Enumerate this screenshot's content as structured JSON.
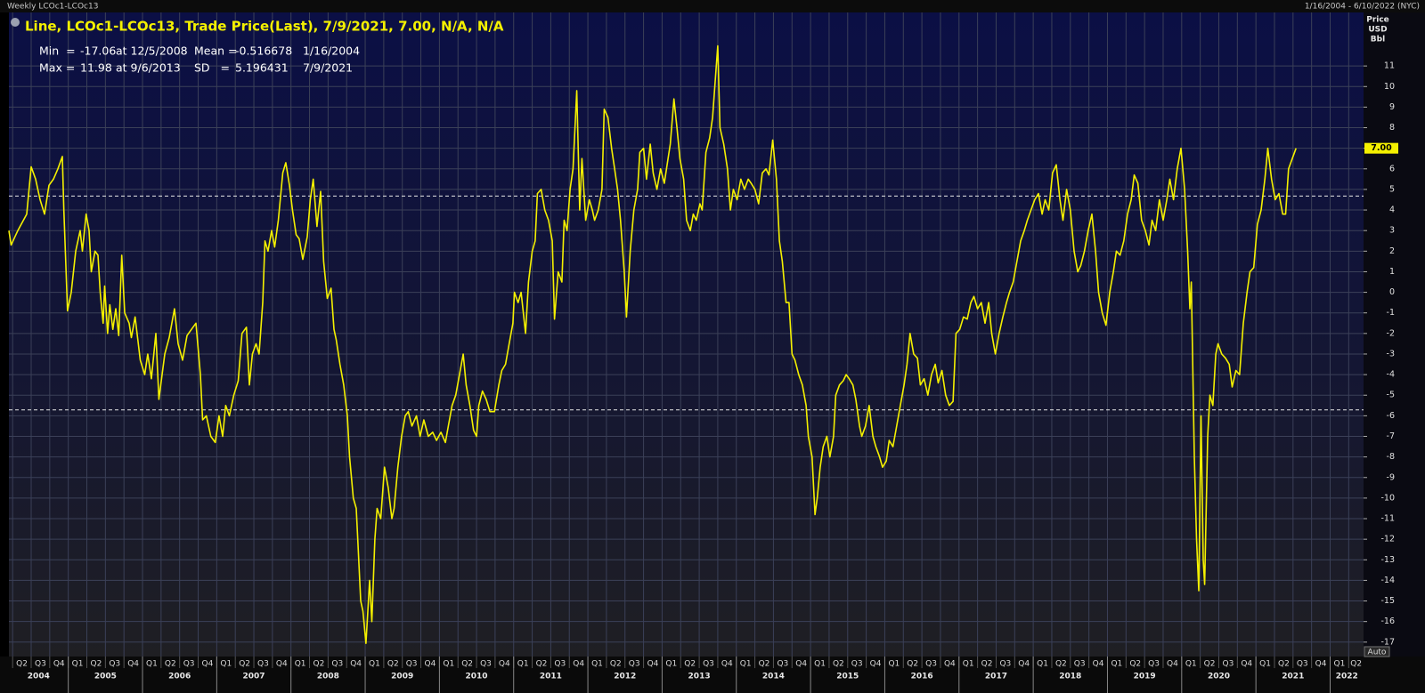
{
  "chart_data": {
    "type": "line",
    "window_title": "Weekly LCOc1-LCOc13",
    "date_range": "1/16/2004 - 6/10/2022 (NYC)",
    "y_axis_label": [
      "Price",
      "USD",
      "Bbl"
    ],
    "stats": [
      {
        "name": "Min  =",
        "value": -17.06,
        "at": "at 12/5/2008"
      },
      {
        "name": "Max =",
        "value": 11.98,
        "at": "at 9/6/2013"
      },
      {
        "name": "Mean =",
        "value": -0.516678,
        "at": "1/16/2004"
      },
      {
        "name": "SD   =",
        "value": 5.196431,
        "at": "7/9/2021"
      }
    ],
    "price_marker": {
      "value": 7,
      "label": "7.00"
    },
    "auto_button": "Auto",
    "xlim": [
      2004.2,
      2022.45
    ],
    "ylim": [
      -17.7,
      13.6
    ],
    "yticks": [
      -17,
      -16,
      -15,
      -14,
      -13,
      -12,
      -11,
      -10,
      -9,
      -8,
      -7,
      -6,
      -5,
      -4,
      -3,
      -2,
      -1,
      0,
      1,
      2,
      3,
      4,
      5,
      6,
      7,
      8,
      9,
      10,
      11
    ],
    "xticks": [
      {
        "value": 2004.25,
        "label": "Q2"
      },
      {
        "value": 2004.5,
        "label": "Q3"
      },
      {
        "value": 2004.75,
        "label": "Q4"
      },
      {
        "value": 2005,
        "label": "Q1"
      },
      {
        "value": 2005.25,
        "label": "Q2"
      },
      {
        "value": 2005.5,
        "label": "Q3"
      },
      {
        "value": 2005.75,
        "label": "Q4"
      },
      {
        "value": 2006,
        "label": "Q1"
      },
      {
        "value": 2006.25,
        "label": "Q2"
      },
      {
        "value": 2006.5,
        "label": "Q3"
      },
      {
        "value": 2006.75,
        "label": "Q4"
      },
      {
        "value": 2007,
        "label": "Q1"
      },
      {
        "value": 2007.25,
        "label": "Q2"
      },
      {
        "value": 2007.5,
        "label": "Q3"
      },
      {
        "value": 2007.75,
        "label": "Q4"
      },
      {
        "value": 2008,
        "label": "Q1"
      },
      {
        "value": 2008.25,
        "label": "Q2"
      },
      {
        "value": 2008.5,
        "label": "Q3"
      },
      {
        "value": 2008.75,
        "label": "Q4"
      },
      {
        "value": 2009,
        "label": "Q1"
      },
      {
        "value": 2009.25,
        "label": "Q2"
      },
      {
        "value": 2009.5,
        "label": "Q3"
      },
      {
        "value": 2009.75,
        "label": "Q4"
      },
      {
        "value": 2010,
        "label": "Q1"
      },
      {
        "value": 2010.25,
        "label": "Q2"
      },
      {
        "value": 2010.5,
        "label": "Q3"
      },
      {
        "value": 2010.75,
        "label": "Q4"
      },
      {
        "value": 2011,
        "label": "Q1"
      },
      {
        "value": 2011.25,
        "label": "Q2"
      },
      {
        "value": 2011.5,
        "label": "Q3"
      },
      {
        "value": 2011.75,
        "label": "Q4"
      },
      {
        "value": 2012,
        "label": "Q1"
      },
      {
        "value": 2012.25,
        "label": "Q2"
      },
      {
        "value": 2012.5,
        "label": "Q3"
      },
      {
        "value": 2012.75,
        "label": "Q4"
      },
      {
        "value": 2013,
        "label": "Q1"
      },
      {
        "value": 2013.25,
        "label": "Q2"
      },
      {
        "value": 2013.5,
        "label": "Q3"
      },
      {
        "value": 2013.75,
        "label": "Q4"
      },
      {
        "value": 2014,
        "label": "Q1"
      },
      {
        "value": 2014.25,
        "label": "Q2"
      },
      {
        "value": 2014.5,
        "label": "Q3"
      },
      {
        "value": 2014.75,
        "label": "Q4"
      },
      {
        "value": 2015,
        "label": "Q1"
      },
      {
        "value": 2015.25,
        "label": "Q2"
      },
      {
        "value": 2015.5,
        "label": "Q3"
      },
      {
        "value": 2015.75,
        "label": "Q4"
      },
      {
        "value": 2016,
        "label": "Q1"
      },
      {
        "value": 2016.25,
        "label": "Q2"
      },
      {
        "value": 2016.5,
        "label": "Q3"
      },
      {
        "value": 2016.75,
        "label": "Q4"
      },
      {
        "value": 2017,
        "label": "Q1"
      },
      {
        "value": 2017.25,
        "label": "Q2"
      },
      {
        "value": 2017.5,
        "label": "Q3"
      },
      {
        "value": 2017.75,
        "label": "Q4"
      },
      {
        "value": 2018,
        "label": "Q1"
      },
      {
        "value": 2018.25,
        "label": "Q2"
      },
      {
        "value": 2018.5,
        "label": "Q3"
      },
      {
        "value": 2018.75,
        "label": "Q4"
      },
      {
        "value": 2019,
        "label": "Q1"
      },
      {
        "value": 2019.25,
        "label": "Q2"
      },
      {
        "value": 2019.5,
        "label": "Q3"
      },
      {
        "value": 2019.75,
        "label": "Q4"
      },
      {
        "value": 2020,
        "label": "Q1"
      },
      {
        "value": 2020.25,
        "label": "Q2"
      },
      {
        "value": 2020.5,
        "label": "Q3"
      },
      {
        "value": 2020.75,
        "label": "Q4"
      },
      {
        "value": 2021,
        "label": "Q1"
      },
      {
        "value": 2021.25,
        "label": "Q2"
      },
      {
        "value": 2021.5,
        "label": "Q3"
      },
      {
        "value": 2021.75,
        "label": "Q4"
      },
      {
        "value": 2022,
        "label": "Q1"
      },
      {
        "value": 2022.25,
        "label": "Q2"
      }
    ],
    "year_ticks": [
      2004,
      2005,
      2006,
      2007,
      2008,
      2009,
      2010,
      2011,
      2012,
      2013,
      2014,
      2015,
      2016,
      2017,
      2018,
      2019,
      2020,
      2021,
      2022
    ],
    "grid": true,
    "x": [
      2004.2,
      2004.23,
      2004.32,
      2004.44,
      2004.5,
      2004.56,
      2004.62,
      2004.68,
      2004.74,
      2004.8,
      2004.86,
      2004.92,
      2004.94,
      2004.99,
      2005.04,
      2005.1,
      2005.16,
      2005.19,
      2005.24,
      2005.28,
      2005.31,
      2005.36,
      2005.4,
      2005.43,
      2005.47,
      2005.49,
      2005.53,
      2005.56,
      2005.6,
      2005.64,
      2005.68,
      2005.72,
      2005.76,
      2005.82,
      2005.85,
      2005.9,
      2005.97,
      2006.03,
      2006.07,
      2006.12,
      2006.18,
      2006.22,
      2006.3,
      2006.36,
      2006.43,
      2006.48,
      2006.54,
      2006.6,
      2006.66,
      2006.72,
      2006.78,
      2006.81,
      2006.86,
      2006.92,
      2006.98,
      2007.03,
      2007.08,
      2007.12,
      2007.17,
      2007.23,
      2007.29,
      2007.34,
      2007.4,
      2007.44,
      2007.48,
      2007.53,
      2007.57,
      2007.62,
      2007.65,
      2007.69,
      2007.74,
      2007.78,
      2007.83,
      2007.89,
      2007.93,
      2007.98,
      2008.02,
      2008.07,
      2008.11,
      2008.16,
      2008.22,
      2008.26,
      2008.3,
      2008.35,
      2008.4,
      2008.44,
      2008.49,
      2008.54,
      2008.58,
      2008.61,
      2008.66,
      2008.71,
      2008.76,
      2008.79,
      2008.84,
      2008.88,
      2008.9,
      2008.94,
      2008.97,
      2009.01,
      2009.06,
      2009.09,
      2009.13,
      2009.16,
      2009.21,
      2009.26,
      2009.31,
      2009.36,
      2009.39,
      2009.44,
      2009.49,
      2009.54,
      2009.58,
      2009.63,
      2009.69,
      2009.74,
      2009.79,
      2009.85,
      2009.91,
      2009.96,
      2010.02,
      2010.08,
      2010.12,
      2010.17,
      2010.22,
      2010.27,
      2010.32,
      2010.36,
      2010.41,
      2010.46,
      2010.5,
      2010.53,
      2010.58,
      2010.63,
      2010.68,
      2010.74,
      2010.8,
      2010.84,
      2010.89,
      2010.94,
      2010.99,
      2011.01,
      2011.06,
      2011.1,
      2011.16,
      2011.2,
      2011.25,
      2011.29,
      2011.32,
      2011.37,
      2011.42,
      2011.47,
      2011.52,
      2011.55,
      2011.6,
      2011.65,
      2011.68,
      2011.72,
      2011.76,
      2011.8,
      2011.85,
      2011.89,
      2011.92,
      2011.97,
      2012.02,
      2012.06,
      2012.09,
      2012.14,
      2012.19,
      2012.22,
      2012.27,
      2012.32,
      2012.36,
      2012.4,
      2012.44,
      2012.49,
      2012.52,
      2012.57,
      2012.62,
      2012.67,
      2012.7,
      2012.75,
      2012.79,
      2012.84,
      2012.88,
      2012.93,
      2012.98,
      2013.03,
      2013.08,
      2013.11,
      2013.16,
      2013.2,
      2013.24,
      2013.29,
      2013.33,
      2013.38,
      2013.42,
      2013.46,
      2013.51,
      2013.54,
      2013.59,
      2013.64,
      2013.68,
      2013.71,
      2013.75,
      2013.78,
      2013.83,
      2013.88,
      2013.92,
      2013.96,
      2014.01,
      2014.06,
      2014.11,
      2014.16,
      2014.2,
      2014.25,
      2014.3,
      2014.35,
      2014.4,
      2014.44,
      2014.49,
      2014.54,
      2014.58,
      2014.62,
      2014.67,
      2014.71,
      2014.75,
      2014.79,
      2014.84,
      2014.89,
      2014.94,
      2014.97,
      2015.02,
      2015.06,
      2015.09,
      2015.13,
      2015.17,
      2015.22,
      2015.26,
      2015.31,
      2015.34,
      2015.39,
      2015.44,
      2015.48,
      2015.52,
      2015.57,
      2015.61,
      2015.66,
      2015.69,
      2015.74,
      2015.79,
      2015.84,
      2015.88,
      2015.93,
      2015.97,
      2016.02,
      2016.06,
      2016.11,
      2016.16,
      2016.21,
      2016.26,
      2016.3,
      2016.34,
      2016.39,
      2016.44,
      2016.48,
      2016.53,
      2016.58,
      2016.63,
      2016.68,
      2016.72,
      2016.77,
      2016.82,
      2016.87,
      2016.92,
      2016.96,
      2017.01,
      2017.06,
      2017.11,
      2017.16,
      2017.2,
      2017.25,
      2017.3,
      2017.35,
      2017.4,
      2017.44,
      2017.49,
      2017.54,
      2017.59,
      2017.64,
      2017.68,
      2017.73,
      2017.78,
      2017.83,
      2017.88,
      2017.92,
      2017.97,
      2018.02,
      2018.07,
      2018.12,
      2018.16,
      2018.21,
      2018.26,
      2018.31,
      2018.36,
      2018.4,
      2018.45,
      2018.5,
      2018.55,
      2018.6,
      2018.64,
      2018.69,
      2018.74,
      2018.79,
      2018.84,
      2018.88,
      2018.93,
      2018.98,
      2019.03,
      2019.08,
      2019.12,
      2019.17,
      2019.22,
      2019.27,
      2019.32,
      2019.36,
      2019.41,
      2019.46,
      2019.51,
      2019.56,
      2019.6,
      2019.65,
      2019.7,
      2019.75,
      2019.8,
      2019.84,
      2019.89,
      2019.94,
      2019.99,
      2020.04,
      2020.08,
      2020.11,
      2020.13,
      2020.17,
      2020.2,
      2020.23,
      2020.26,
      2020.29,
      2020.31,
      2020.35,
      2020.38,
      2020.42,
      2020.46,
      2020.49,
      2020.54,
      2020.59,
      2020.64,
      2020.68,
      2020.73,
      2020.78,
      2020.83,
      2020.88,
      2020.92,
      2020.97,
      2021.02,
      2021.07,
      2021.12,
      2021.16,
      2021.21,
      2021.26,
      2021.31,
      2021.36,
      2021.4,
      2021.44,
      2021.49,
      2021.54
    ],
    "series": [
      {
        "name": "Line, LCOc1-LCOc13, Trade Price(Last), 7/9/2021, 7.00, N/A, N/A",
        "color": "#f4f000",
        "values": [
          3.0,
          2.3,
          3,
          3.8,
          6.1,
          5.5,
          4.5,
          3.8,
          5.2,
          5.5,
          6.0,
          6.6,
          4,
          -0.9,
          0,
          2,
          3,
          2,
          3.8,
          3,
          1,
          2,
          1.8,
          0,
          -1.5,
          0.3,
          -2,
          -0.6,
          -1.8,
          -0.8,
          -2.1,
          1.8,
          -1,
          -1.5,
          -2.2,
          -1.2,
          -3.3,
          -4,
          -3,
          -4.2,
          -2,
          -5.2,
          -3,
          -2.2,
          -0.8,
          -2.5,
          -3.3,
          -2.1,
          -1.8,
          -1.5,
          -4,
          -6.2,
          -6,
          -7,
          -7.3,
          -6,
          -7,
          -5.5,
          -6,
          -5,
          -4.3,
          -2,
          -1.7,
          -4.5,
          -3,
          -2.5,
          -3,
          -0.5,
          2.5,
          2,
          3,
          2.2,
          3.5,
          5.8,
          6.3,
          5.2,
          4,
          2.8,
          2.6,
          1.6,
          2.7,
          4.5,
          5.5,
          3.2,
          4.9,
          1.5,
          -0.3,
          0.2,
          -1.8,
          -2.3,
          -3.5,
          -4.5,
          -6,
          -8,
          -10,
          -10.5,
          -12,
          -15,
          -15.5,
          -17.06,
          -14,
          -16,
          -12,
          -10.5,
          -11,
          -8.5,
          -9.5,
          -11,
          -10.5,
          -8.5,
          -7,
          -6,
          -5.8,
          -6.5,
          -6,
          -7,
          -6.2,
          -7,
          -6.8,
          -7.2,
          -6.8,
          -7.3,
          -6.5,
          -5.5,
          -5,
          -4,
          -3,
          -4.5,
          -5.5,
          -6.7,
          -7,
          -5.5,
          -4.8,
          -5.2,
          -5.8,
          -5.8,
          -4.5,
          -3.8,
          -3.5,
          -2.5,
          -1.5,
          0,
          -0.5,
          0,
          -2,
          0.5,
          2,
          2.5,
          4.8,
          5,
          4,
          3.5,
          2.5,
          -1.3,
          1,
          0.5,
          3.5,
          3,
          5,
          6,
          9.8,
          4,
          6.5,
          3.5,
          4.5,
          4,
          3.5,
          4,
          5,
          8.9,
          8.5,
          7,
          6,
          5,
          3.5,
          1,
          -1.2,
          2,
          4,
          5,
          6.8,
          7,
          5.5,
          7.2,
          5.8,
          5,
          6,
          5.3,
          6.5,
          7.2,
          9.4,
          8,
          6.5,
          5.5,
          3.5,
          3,
          3.8,
          3.5,
          4.3,
          4,
          6.8,
          7.5,
          8.5,
          10,
          11.98,
          8,
          7.2,
          6,
          4,
          5,
          4.5,
          5.5,
          5,
          5.5,
          5.3,
          5,
          4.3,
          5.8,
          6,
          5.7,
          7.4,
          5.5,
          2.5,
          1.5,
          -0.5,
          -0.5,
          -3,
          -3.3,
          -4,
          -4.5,
          -5.5,
          -7,
          -8,
          -10.8,
          -10,
          -8.5,
          -7.5,
          -7,
          -8,
          -7,
          -5,
          -4.5,
          -4.3,
          -4,
          -4.2,
          -4.5,
          -5.2,
          -6.5,
          -7,
          -6.5,
          -5.5,
          -7,
          -7.5,
          -8,
          -8.5,
          -8.2,
          -7.2,
          -7.5,
          -6.5,
          -5.5,
          -4.5,
          -3.5,
          -2,
          -3,
          -3.2,
          -4.5,
          -4.2,
          -5,
          -4,
          -3.5,
          -4.4,
          -3.8,
          -5,
          -5.5,
          -5.3,
          -2,
          -1.8,
          -1.2,
          -1.3,
          -0.5,
          -0.2,
          -0.8,
          -0.5,
          -1.5,
          -0.5,
          -2,
          -3,
          -2,
          -1.2,
          -0.5,
          0,
          0.5,
          1.5,
          2.5,
          3,
          3.5,
          4,
          4.5,
          4.8,
          3.8,
          4.5,
          4,
          5.8,
          6.2,
          4.5,
          3.5,
          5,
          4,
          2,
          1,
          1.3,
          2,
          3,
          3.8,
          2,
          0,
          -1,
          -1.6,
          0,
          1,
          2,
          1.8,
          2.5,
          3.8,
          4.5,
          5.7,
          5.3,
          3.5,
          3,
          2.3,
          3.5,
          3,
          4.5,
          3.5,
          4.5,
          5.5,
          4.5,
          6,
          7,
          5,
          2,
          -0.8,
          0.5,
          -8,
          -12,
          -14.5,
          -6,
          -13,
          -14.2,
          -7,
          -5,
          -5.5,
          -3,
          -2.5,
          -3,
          -3.2,
          -3.5,
          -4.6,
          -3.8,
          -4,
          -1.5,
          0,
          1,
          1.2,
          3.3,
          4,
          5.5,
          7,
          5.5,
          4.5,
          4.8,
          3.8,
          3.8,
          6,
          6.5,
          7
        ]
      }
    ]
  }
}
